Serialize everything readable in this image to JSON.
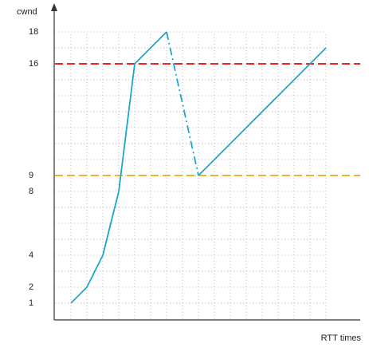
{
  "chart_data": {
    "type": "line",
    "ylabel": "cwnd",
    "xlabel": "RTT times",
    "xlim": [
      0,
      19.2
    ],
    "ylim": [
      0,
      19.5
    ],
    "yticks": [
      1,
      2,
      4,
      8,
      9,
      16,
      18
    ],
    "grid": true,
    "xgrid": [
      1,
      2,
      3,
      4,
      5,
      6,
      7,
      8,
      9,
      10,
      11,
      12,
      13,
      14,
      15,
      16,
      17
    ],
    "ygrid": [
      1,
      2,
      3,
      4,
      5,
      6,
      7,
      8,
      9,
      10,
      11,
      12,
      13,
      14,
      15,
      16,
      17,
      18
    ],
    "hlines": [
      {
        "value": 16,
        "color": "#e8262a"
      },
      {
        "value": 9,
        "color": "#f2b134"
      }
    ],
    "series": [
      {
        "color": "#19a6cf",
        "style": "solid",
        "x": [
          1,
          2,
          3,
          4,
          5,
          7
        ],
        "values": [
          1,
          2,
          4,
          8,
          16,
          18
        ]
      },
      {
        "color": "#19a6cf",
        "style": "dashdot",
        "x": [
          7,
          9
        ],
        "values": [
          18,
          9
        ]
      },
      {
        "color": "#19a6cf",
        "style": "solid",
        "x": [
          9,
          17
        ],
        "values": [
          9,
          17
        ]
      }
    ]
  }
}
